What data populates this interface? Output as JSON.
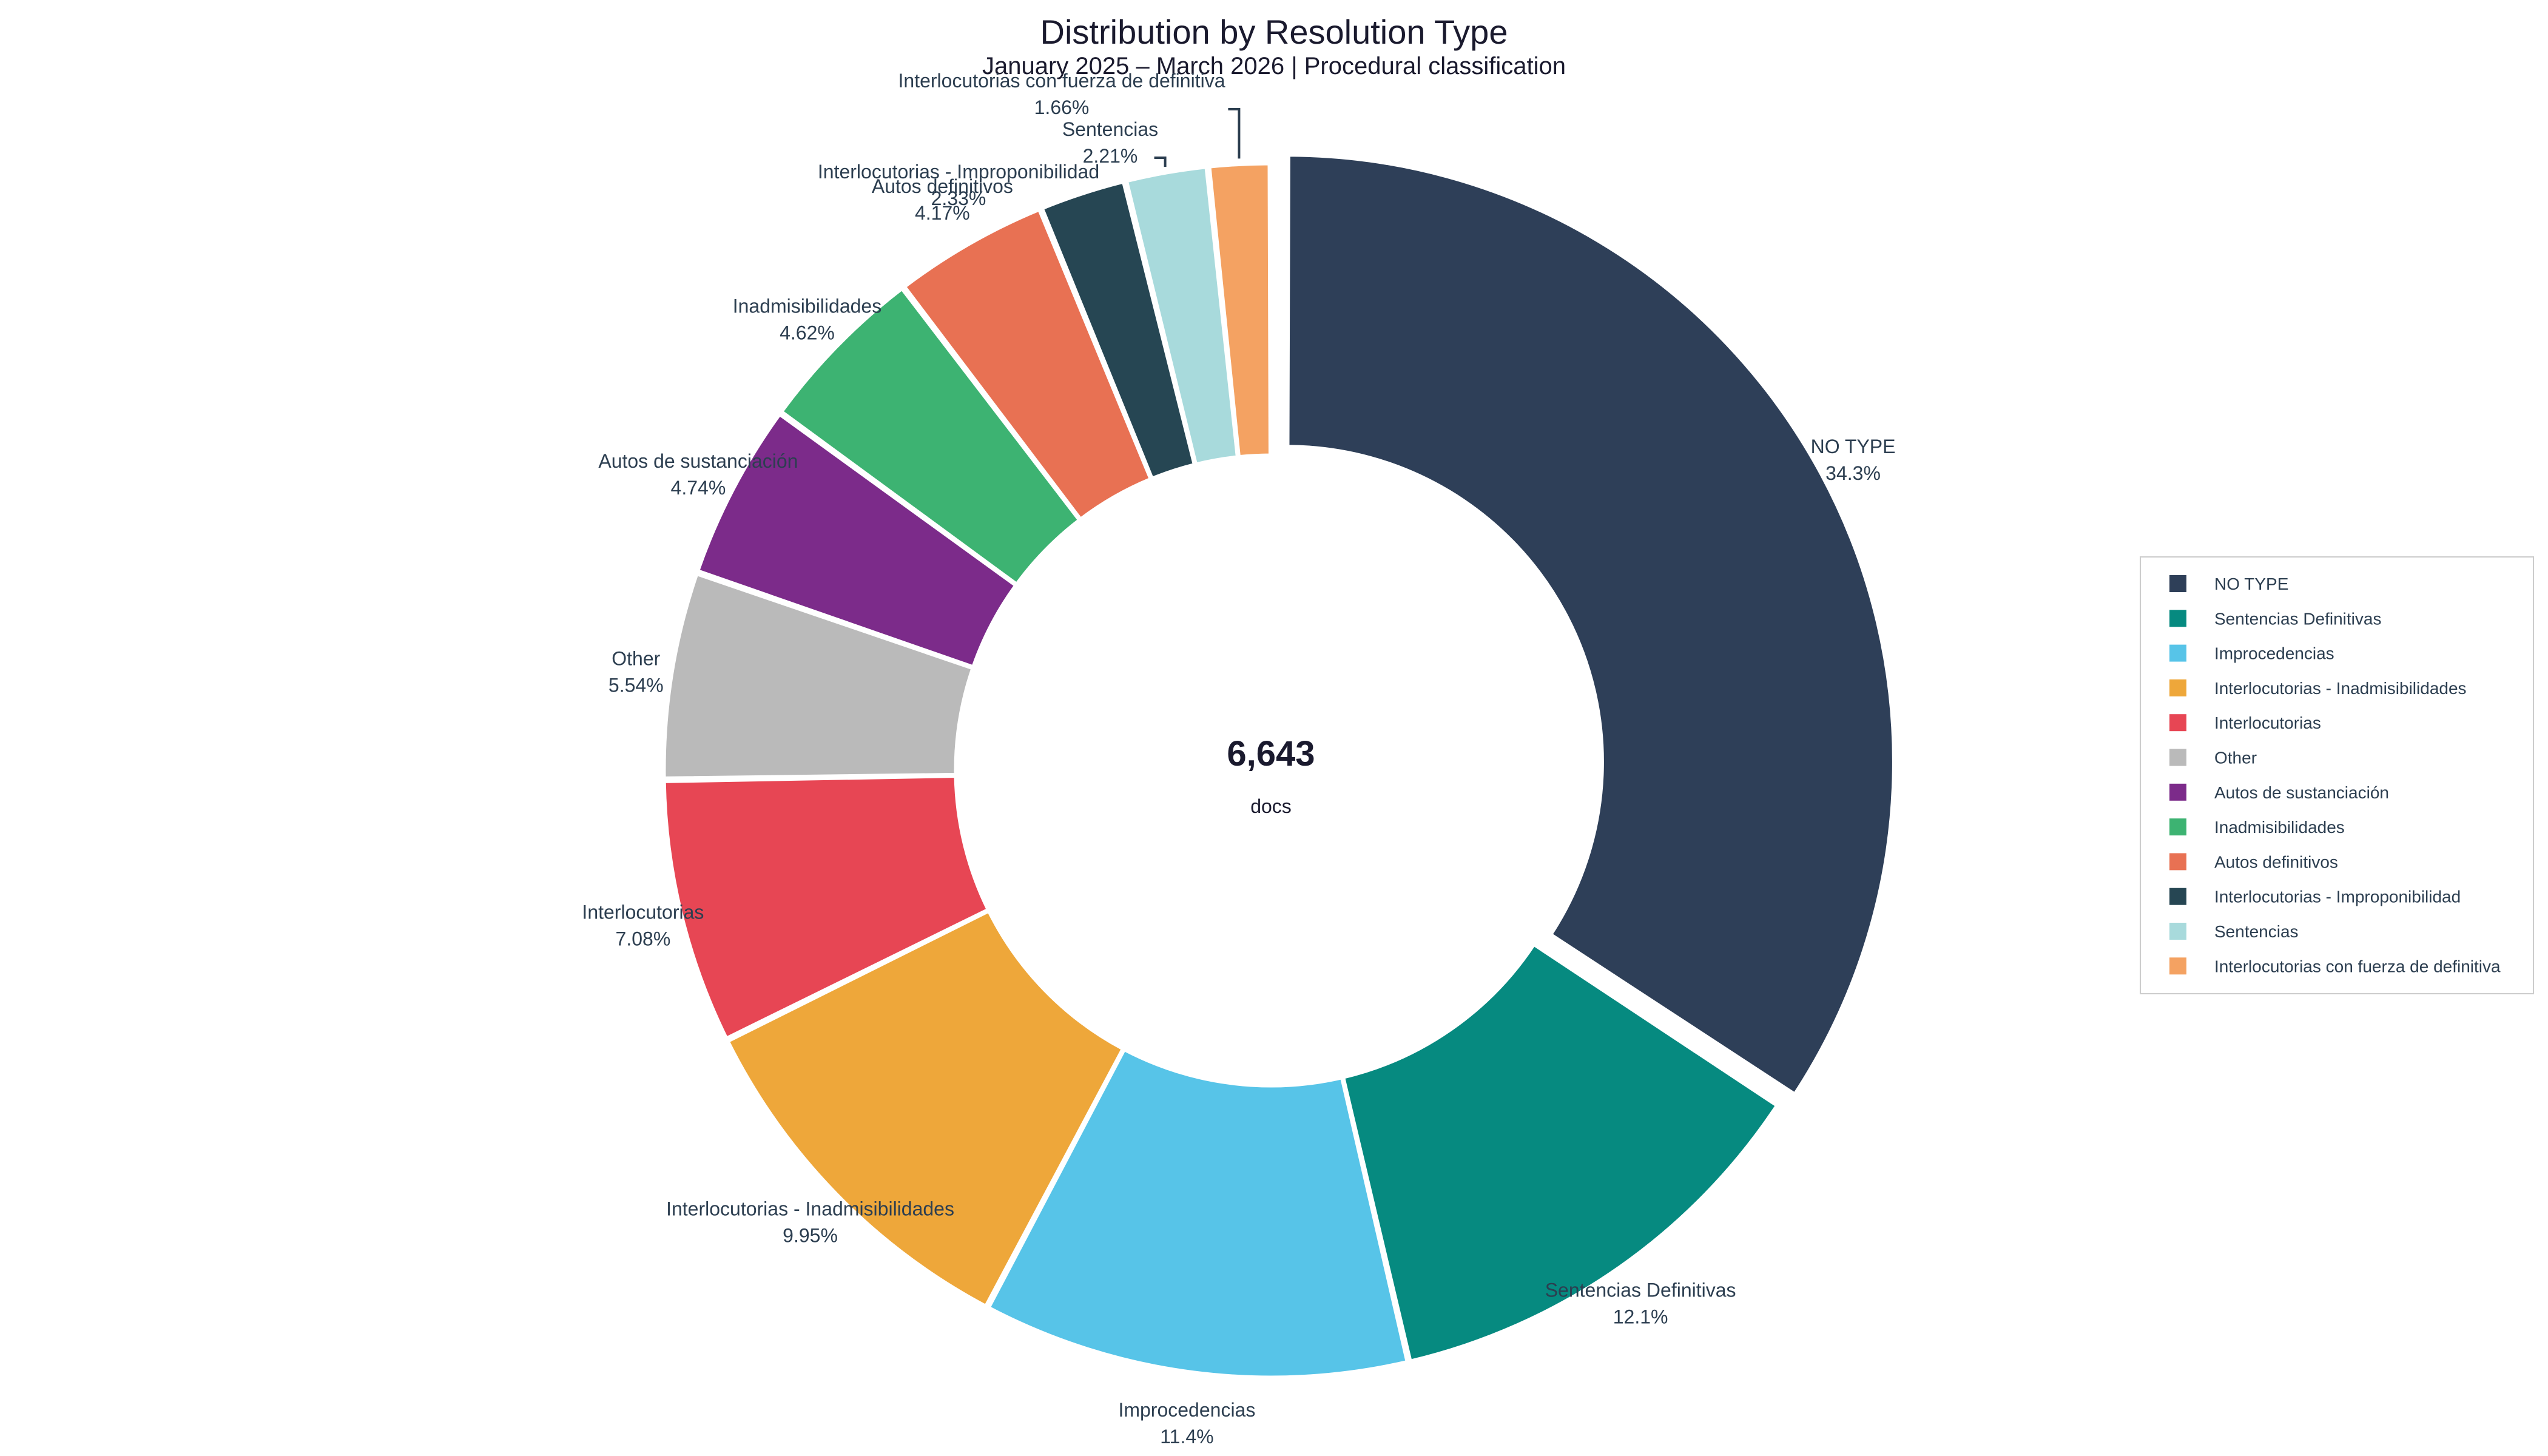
{
  "chart_data": {
    "type": "pie",
    "donut": true,
    "title": "Distribution by Resolution Type",
    "subtitle": "January 2025 – March 2026 | Procedural classification",
    "center": {
      "value": "6,643",
      "label": "docs"
    },
    "slices": [
      {
        "label": "NO TYPE",
        "percent": 34.3,
        "percent_text": "34.3%",
        "color": "#2e3f58",
        "pulled": true
      },
      {
        "label": "Sentencias Definitivas",
        "percent": 12.1,
        "percent_text": "12.1%",
        "color": "#068a80"
      },
      {
        "label": "Improcedencias",
        "percent": 11.4,
        "percent_text": "11.4%",
        "color": "#57c4e8"
      },
      {
        "label": "Interlocutorias - Inadmisibilidades",
        "percent": 9.95,
        "percent_text": "9.95%",
        "color": "#eea73a"
      },
      {
        "label": "Interlocutorias",
        "percent": 7.08,
        "percent_text": "7.08%",
        "color": "#e74654"
      },
      {
        "label": "Other",
        "percent": 5.54,
        "percent_text": "5.54%",
        "color": "#bababa"
      },
      {
        "label": "Autos de sustanciación",
        "percent": 4.74,
        "percent_text": "4.74%",
        "color": "#7c2b8a"
      },
      {
        "label": "Inadmisibilidades",
        "percent": 4.62,
        "percent_text": "4.62%",
        "color": "#3db372"
      },
      {
        "label": "Autos definitivos",
        "percent": 4.17,
        "percent_text": "4.17%",
        "color": "#e87153"
      },
      {
        "label": "Interlocutorias - Improponibilidad",
        "percent": 2.33,
        "percent_text": "2.33%",
        "color": "#264653"
      },
      {
        "label": "Sentencias",
        "percent": 2.21,
        "percent_text": "2.21%",
        "color": "#a8dadc"
      },
      {
        "label": "Interlocutorias con fuerza de definitiva",
        "percent": 1.66,
        "percent_text": "1.66%",
        "color": "#f4a262"
      }
    ],
    "legend": {
      "position": "right"
    }
  }
}
